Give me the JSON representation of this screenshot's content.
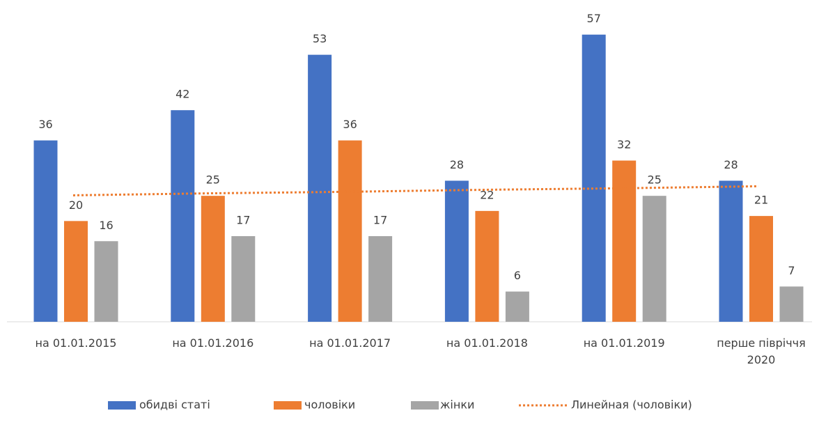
{
  "chart_data": {
    "type": "bar",
    "categories": [
      "на 01.01.2015",
      "на 01.01.2016",
      "на 01.01.2017",
      "на 01.01.2018",
      "на 01.01.2019",
      "перше півріччя 2020"
    ],
    "series": [
      {
        "name": "обидві статі",
        "color": "#4472c4",
        "values": [
          36,
          42,
          53,
          28,
          57,
          28
        ]
      },
      {
        "name": "чоловіки",
        "color": "#ed7d31",
        "values": [
          20,
          25,
          36,
          22,
          32,
          21
        ]
      },
      {
        "name": "жінки",
        "color": "#a5a5a5",
        "values": [
          16,
          17,
          17,
          6,
          25,
          7
        ]
      }
    ],
    "trendline": {
      "name": "Линейная (чоловіки)",
      "color": "#ed7d31",
      "values": [
        25.1,
        25.5,
        25.8,
        26.2,
        26.5,
        26.9
      ]
    },
    "ylim": [
      0,
      60
    ],
    "legend": "bottom"
  }
}
